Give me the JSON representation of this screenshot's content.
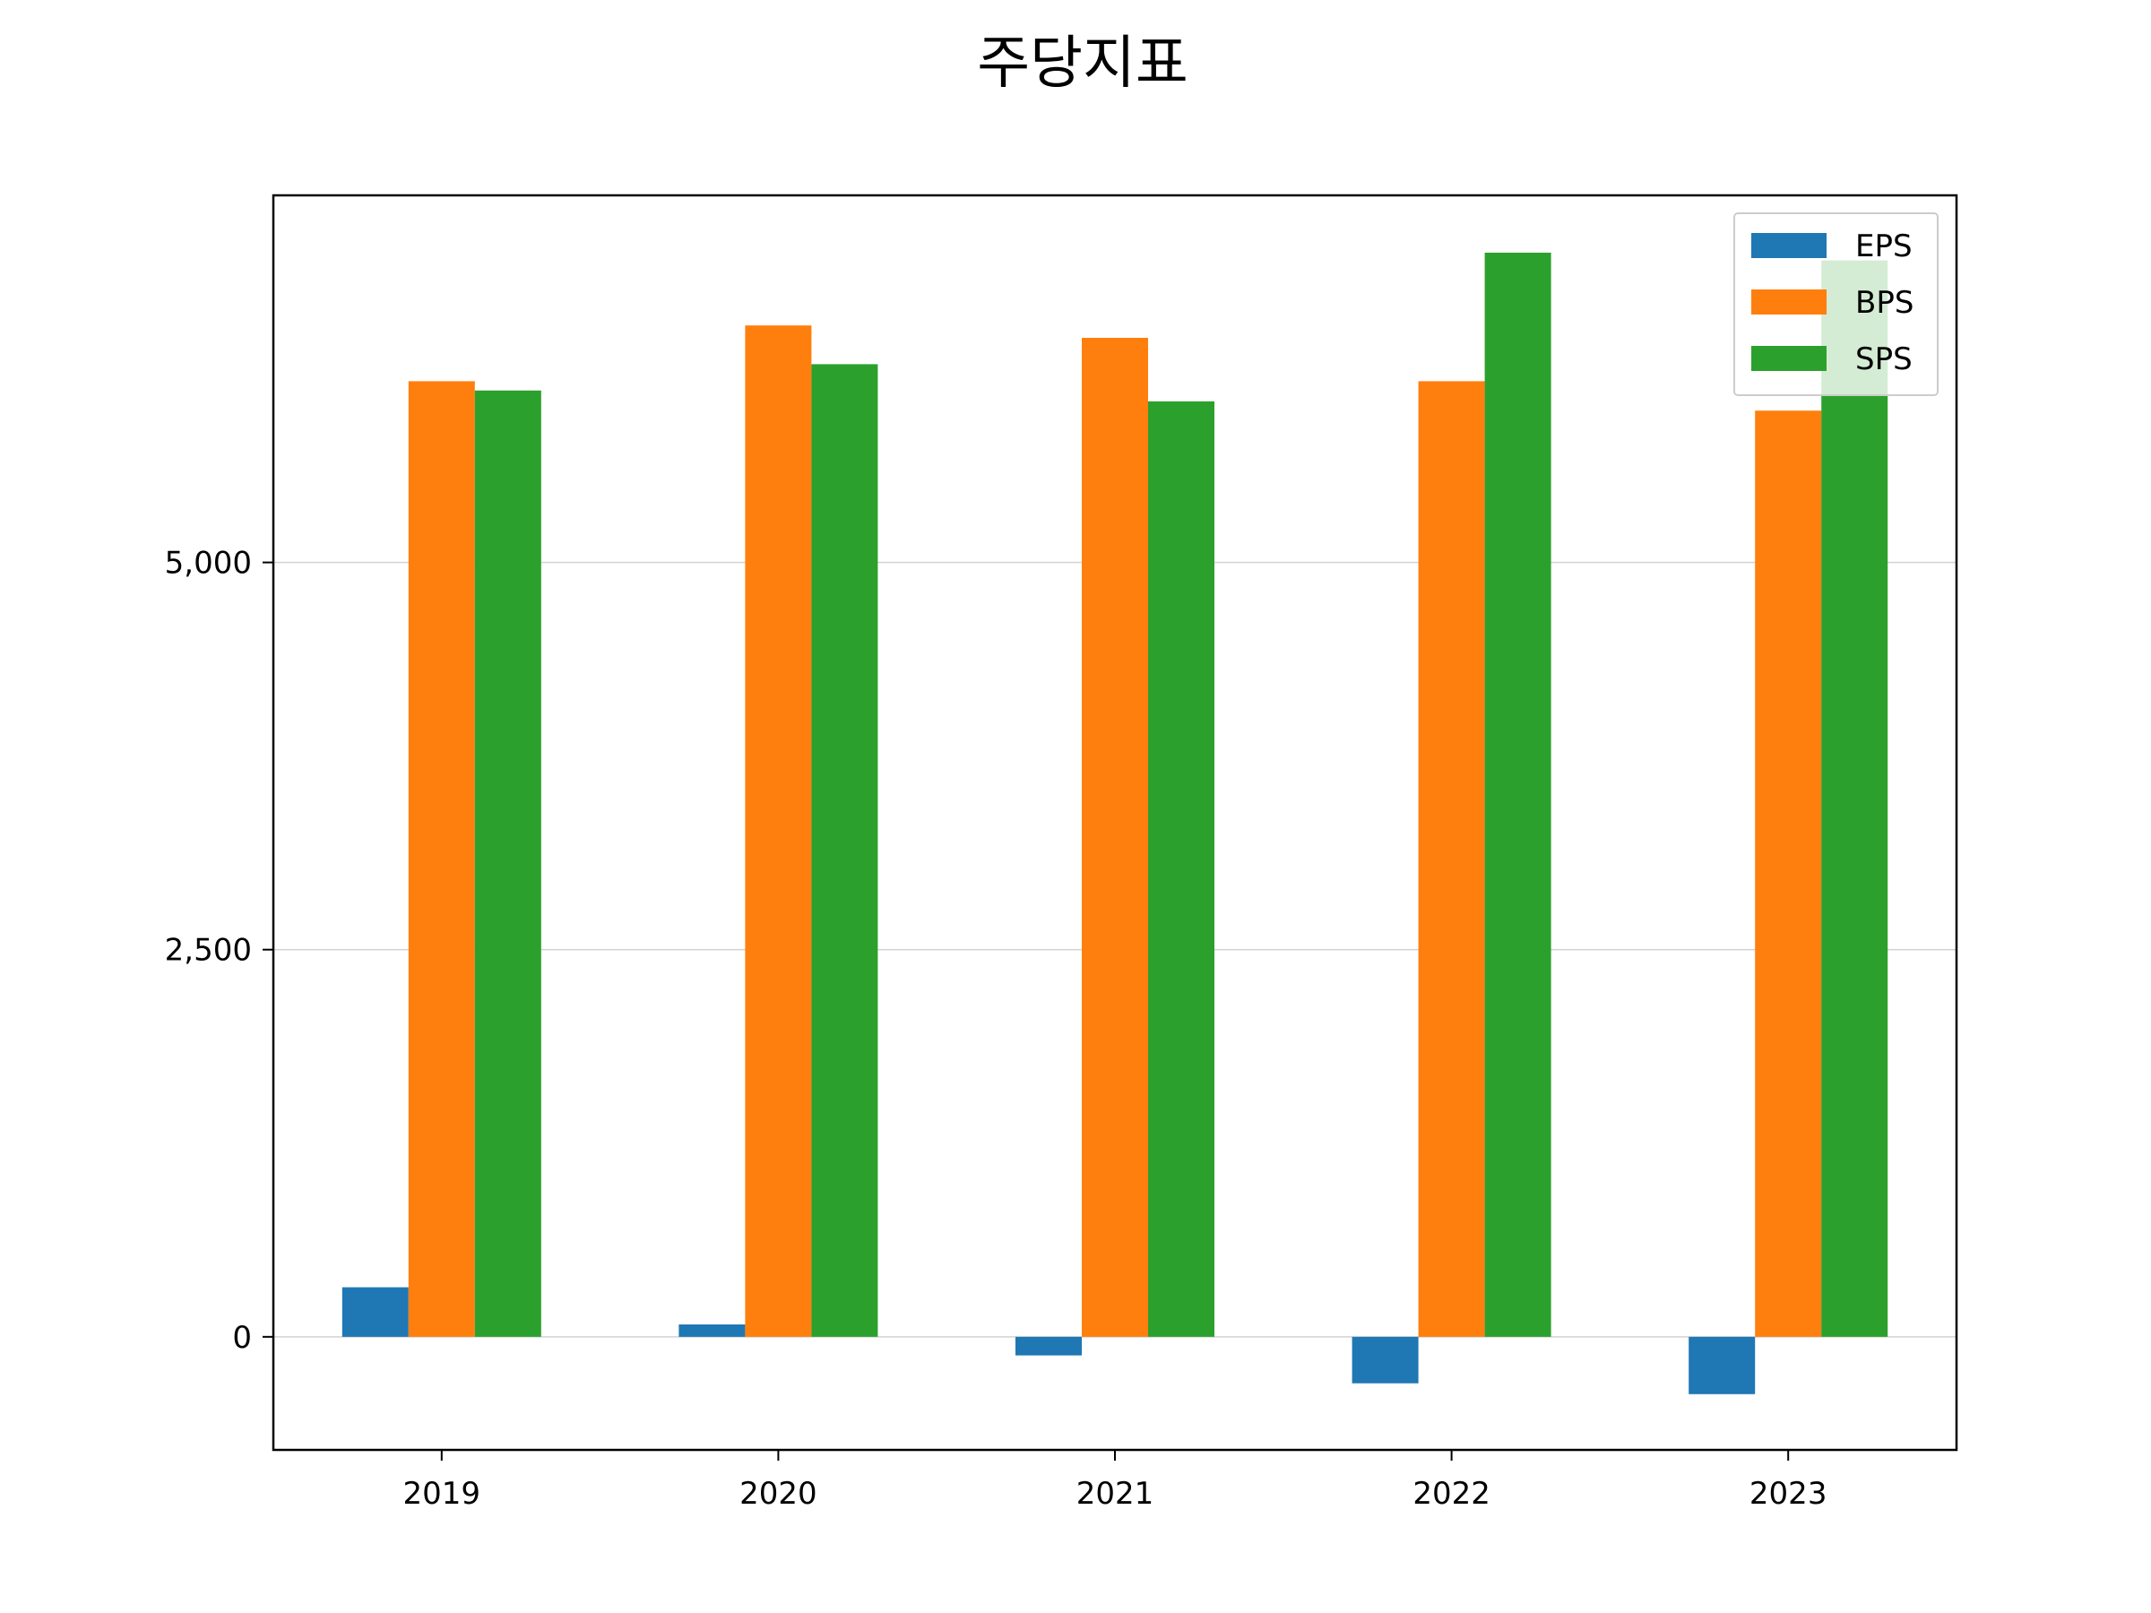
{
  "chart_data": {
    "type": "bar",
    "title": "주당지표",
    "xlabel": "",
    "ylabel": "",
    "categories": [
      "2019",
      "2020",
      "2021",
      "2022",
      "2023"
    ],
    "series": [
      {
        "name": "EPS",
        "color": "#1f77b4",
        "values": [
          320,
          80,
          -120,
          -300,
          -370
        ]
      },
      {
        "name": "BPS",
        "color": "#ff7f0e",
        "values": [
          6170,
          6530,
          6450,
          6170,
          5980
        ]
      },
      {
        "name": "SPS",
        "color": "#2ca02c",
        "values": [
          6110,
          6280,
          6040,
          7000,
          6950
        ]
      }
    ],
    "ylim": [
      -730,
      7370
    ],
    "yticks": [
      0,
      2500,
      5000
    ],
    "ytick_labels": [
      "0",
      "2,500",
      "5,000"
    ],
    "grid": "y",
    "legend_position": "top-right"
  }
}
